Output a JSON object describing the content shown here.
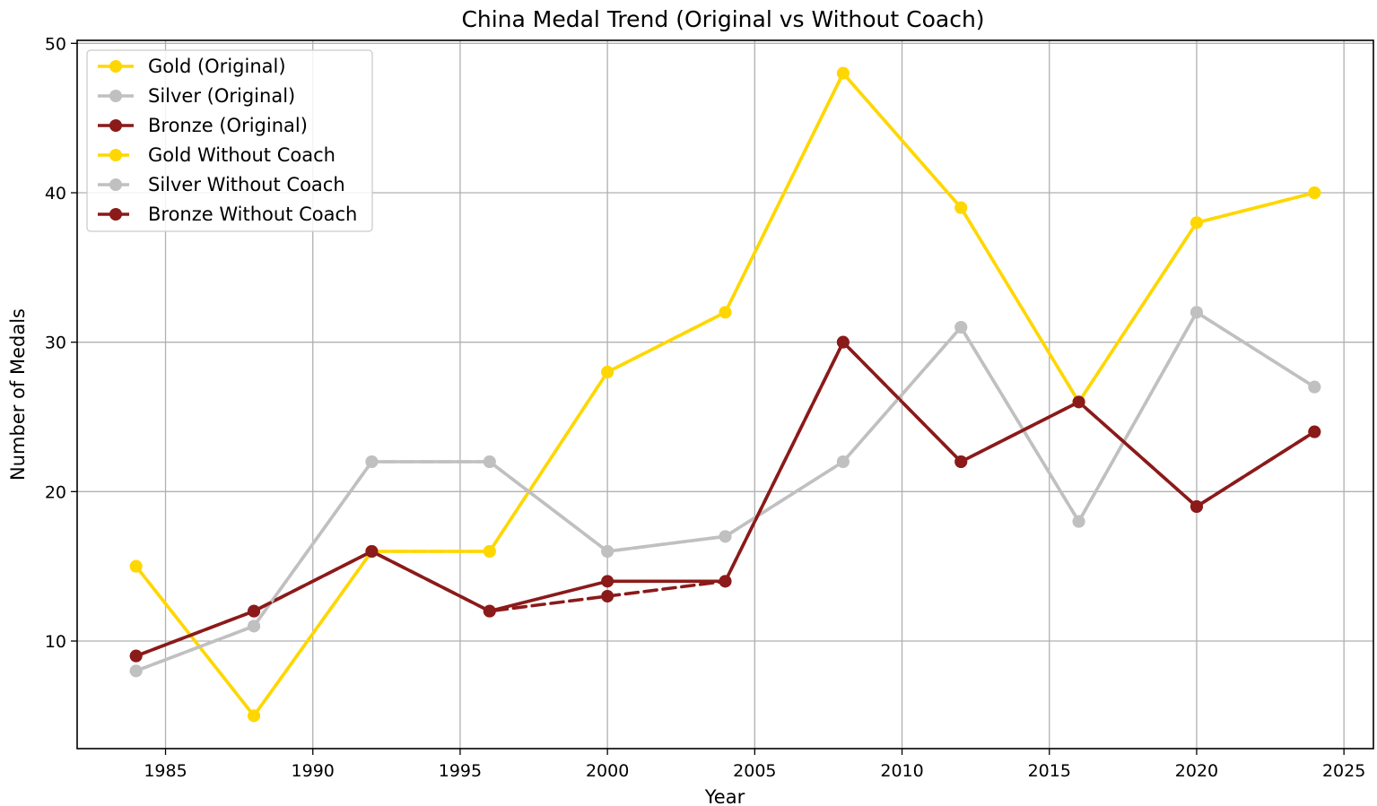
{
  "chart_data": {
    "type": "line",
    "title": "China Medal Trend (Original vs  Without Coach)",
    "xlabel": "Year",
    "ylabel": "Number of Medals",
    "xlim": [
      1982.0,
      2026.0
    ],
    "ylim": [
      2.8,
      50.2
    ],
    "xticks": [
      1985,
      1990,
      1995,
      2000,
      2005,
      2010,
      2015,
      2020,
      2025
    ],
    "yticks": [
      10,
      20,
      30,
      40,
      50
    ],
    "grid": true,
    "legend_position": "top-left",
    "x": [
      1984,
      1988,
      1992,
      1996,
      2000,
      2004,
      2008,
      2012,
      2016,
      2020,
      2024
    ],
    "series": [
      {
        "name": "Gold (Original)",
        "color": "#FFD700",
        "style": "solid",
        "values": [
          15,
          5,
          16,
          16,
          28,
          32,
          48,
          39,
          26,
          38,
          40
        ]
      },
      {
        "name": "Silver (Original)",
        "color": "#C0C0C0",
        "style": "solid",
        "values": [
          8,
          11,
          22,
          22,
          16,
          17,
          22,
          31,
          18,
          32,
          27
        ]
      },
      {
        "name": "Bronze (Original)",
        "color": "#8B1A1A",
        "style": "solid",
        "values": [
          9,
          12,
          16,
          12,
          14,
          14,
          30,
          22,
          26,
          19,
          24
        ]
      },
      {
        "name": "Gold Without Coach",
        "color": "#FFD700",
        "style": "dashed",
        "values": [
          15,
          5,
          16,
          16,
          28,
          32,
          48,
          39,
          26,
          38,
          40
        ]
      },
      {
        "name": "Silver Without Coach",
        "color": "#C0C0C0",
        "style": "dashed",
        "values": [
          8,
          11,
          22,
          22,
          16,
          17,
          22,
          31,
          18,
          32,
          27
        ]
      },
      {
        "name": "Bronze Without Coach",
        "color": "#8B1A1A",
        "style": "dashed",
        "values": [
          9,
          12,
          16,
          12,
          13,
          14,
          30,
          22,
          26,
          19,
          24
        ]
      }
    ]
  }
}
